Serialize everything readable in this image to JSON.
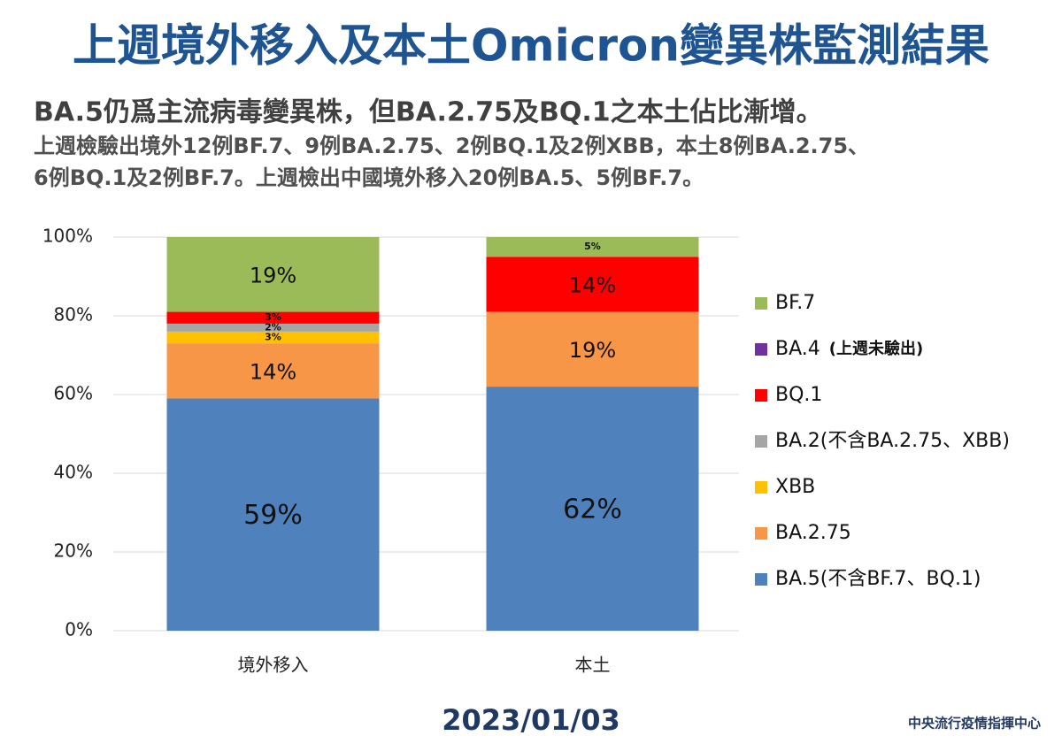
{
  "chart_data": {
    "type": "stacked_bar",
    "title": "上週境外移入及本土Omicron變異株監測結果",
    "subtitle": "BA.5仍爲主流病毒變異株，但BA.2.75及BQ.1之本土佔比漸增。",
    "description": [
      "上週檢驗出境外12例BF.7、9例BA.2.75、2例BQ.1及2例XBB，本土8例BA.2.75、",
      "6例BQ.1及2例BF.7。上週檢出中國境外移入20例BA.5、5例BF.7。"
    ],
    "date": "2023/01/03",
    "source": "中央流行疫情指揮中心",
    "categories": [
      "境外移入",
      "本土"
    ],
    "series": [
      {
        "name": "BA.5(不含BF.7、BQ.1)",
        "color": "#4f81bd",
        "values": [
          59,
          62
        ],
        "value_labels": [
          "59%",
          "62%"
        ]
      },
      {
        "name": "BA.2.75",
        "color": "#f79646",
        "values": [
          14,
          19
        ],
        "value_labels": [
          "14%",
          "19%"
        ]
      },
      {
        "name": "XBB",
        "color": "#ffc000",
        "values": [
          3,
          0
        ],
        "value_labels": [
          "3%",
          null
        ]
      },
      {
        "name": "BA.2(不含BA.2.75、XBB)",
        "color": "#a5a5a5",
        "values": [
          2,
          0
        ],
        "value_labels": [
          "2%",
          null
        ]
      },
      {
        "name": "BQ.1",
        "color": "#ff0000",
        "values": [
          3,
          14
        ],
        "value_labels": [
          "3%",
          "14%"
        ]
      },
      {
        "name": "BA.4",
        "note": "(上週未驗出)",
        "color": "#7030a0",
        "values": [
          0,
          0
        ],
        "value_labels": [
          null,
          null
        ]
      },
      {
        "name": "BF.7",
        "color": "#9bbb59",
        "values": [
          19,
          5
        ],
        "value_labels": [
          "19%",
          "5%"
        ]
      }
    ],
    "ylim": [
      0,
      100
    ],
    "yticks": [
      {
        "value": 0,
        "label": "0%"
      },
      {
        "value": 20,
        "label": "20%"
      },
      {
        "value": 40,
        "label": "40%"
      },
      {
        "value": 60,
        "label": "60%"
      },
      {
        "value": 80,
        "label": "80%"
      },
      {
        "value": 100,
        "label": "100%"
      }
    ],
    "grid": true
  }
}
